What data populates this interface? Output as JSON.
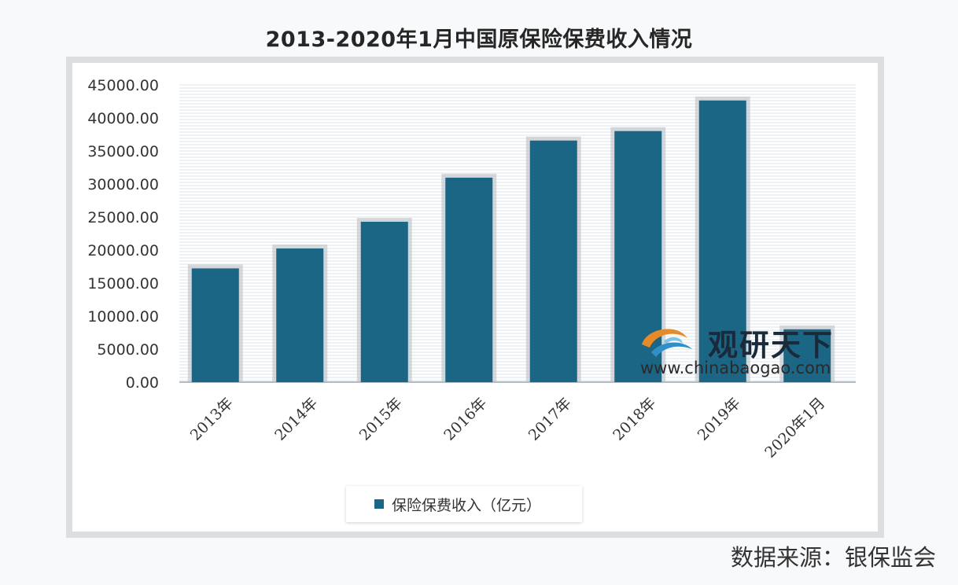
{
  "title": "2013-2020年1月中国原保险保费收入情况",
  "source": "数据来源：银保监会",
  "watermark": {
    "name": "观研天下",
    "url": "www.chinabaogao.com"
  },
  "colors": {
    "bar": "#1b6585",
    "bar_shadow": "#b7bcc1",
    "gridline": "#b9c6d2",
    "axis_text": "#333333"
  },
  "chart_data": {
    "type": "bar",
    "title": "2013-2020年1月中国原保险保费收入情况",
    "categories": [
      "2013年",
      "2014年",
      "2015年",
      "2016年",
      "2017年",
      "2018年",
      "2019年",
      "2020年1月"
    ],
    "series": [
      {
        "name": "保险保费收入（亿元）",
        "values": [
          17222,
          20235,
          24283,
          30959,
          36581,
          38016,
          42645,
          8000
        ]
      }
    ],
    "yticks": [
      "0.00",
      "5000.00",
      "10000.00",
      "15000.00",
      "20000.00",
      "25000.00",
      "30000.00",
      "35000.00",
      "40000.00",
      "45000.00"
    ],
    "ylim": [
      0,
      45000
    ],
    "legend_position": "bottom",
    "grid": true
  }
}
